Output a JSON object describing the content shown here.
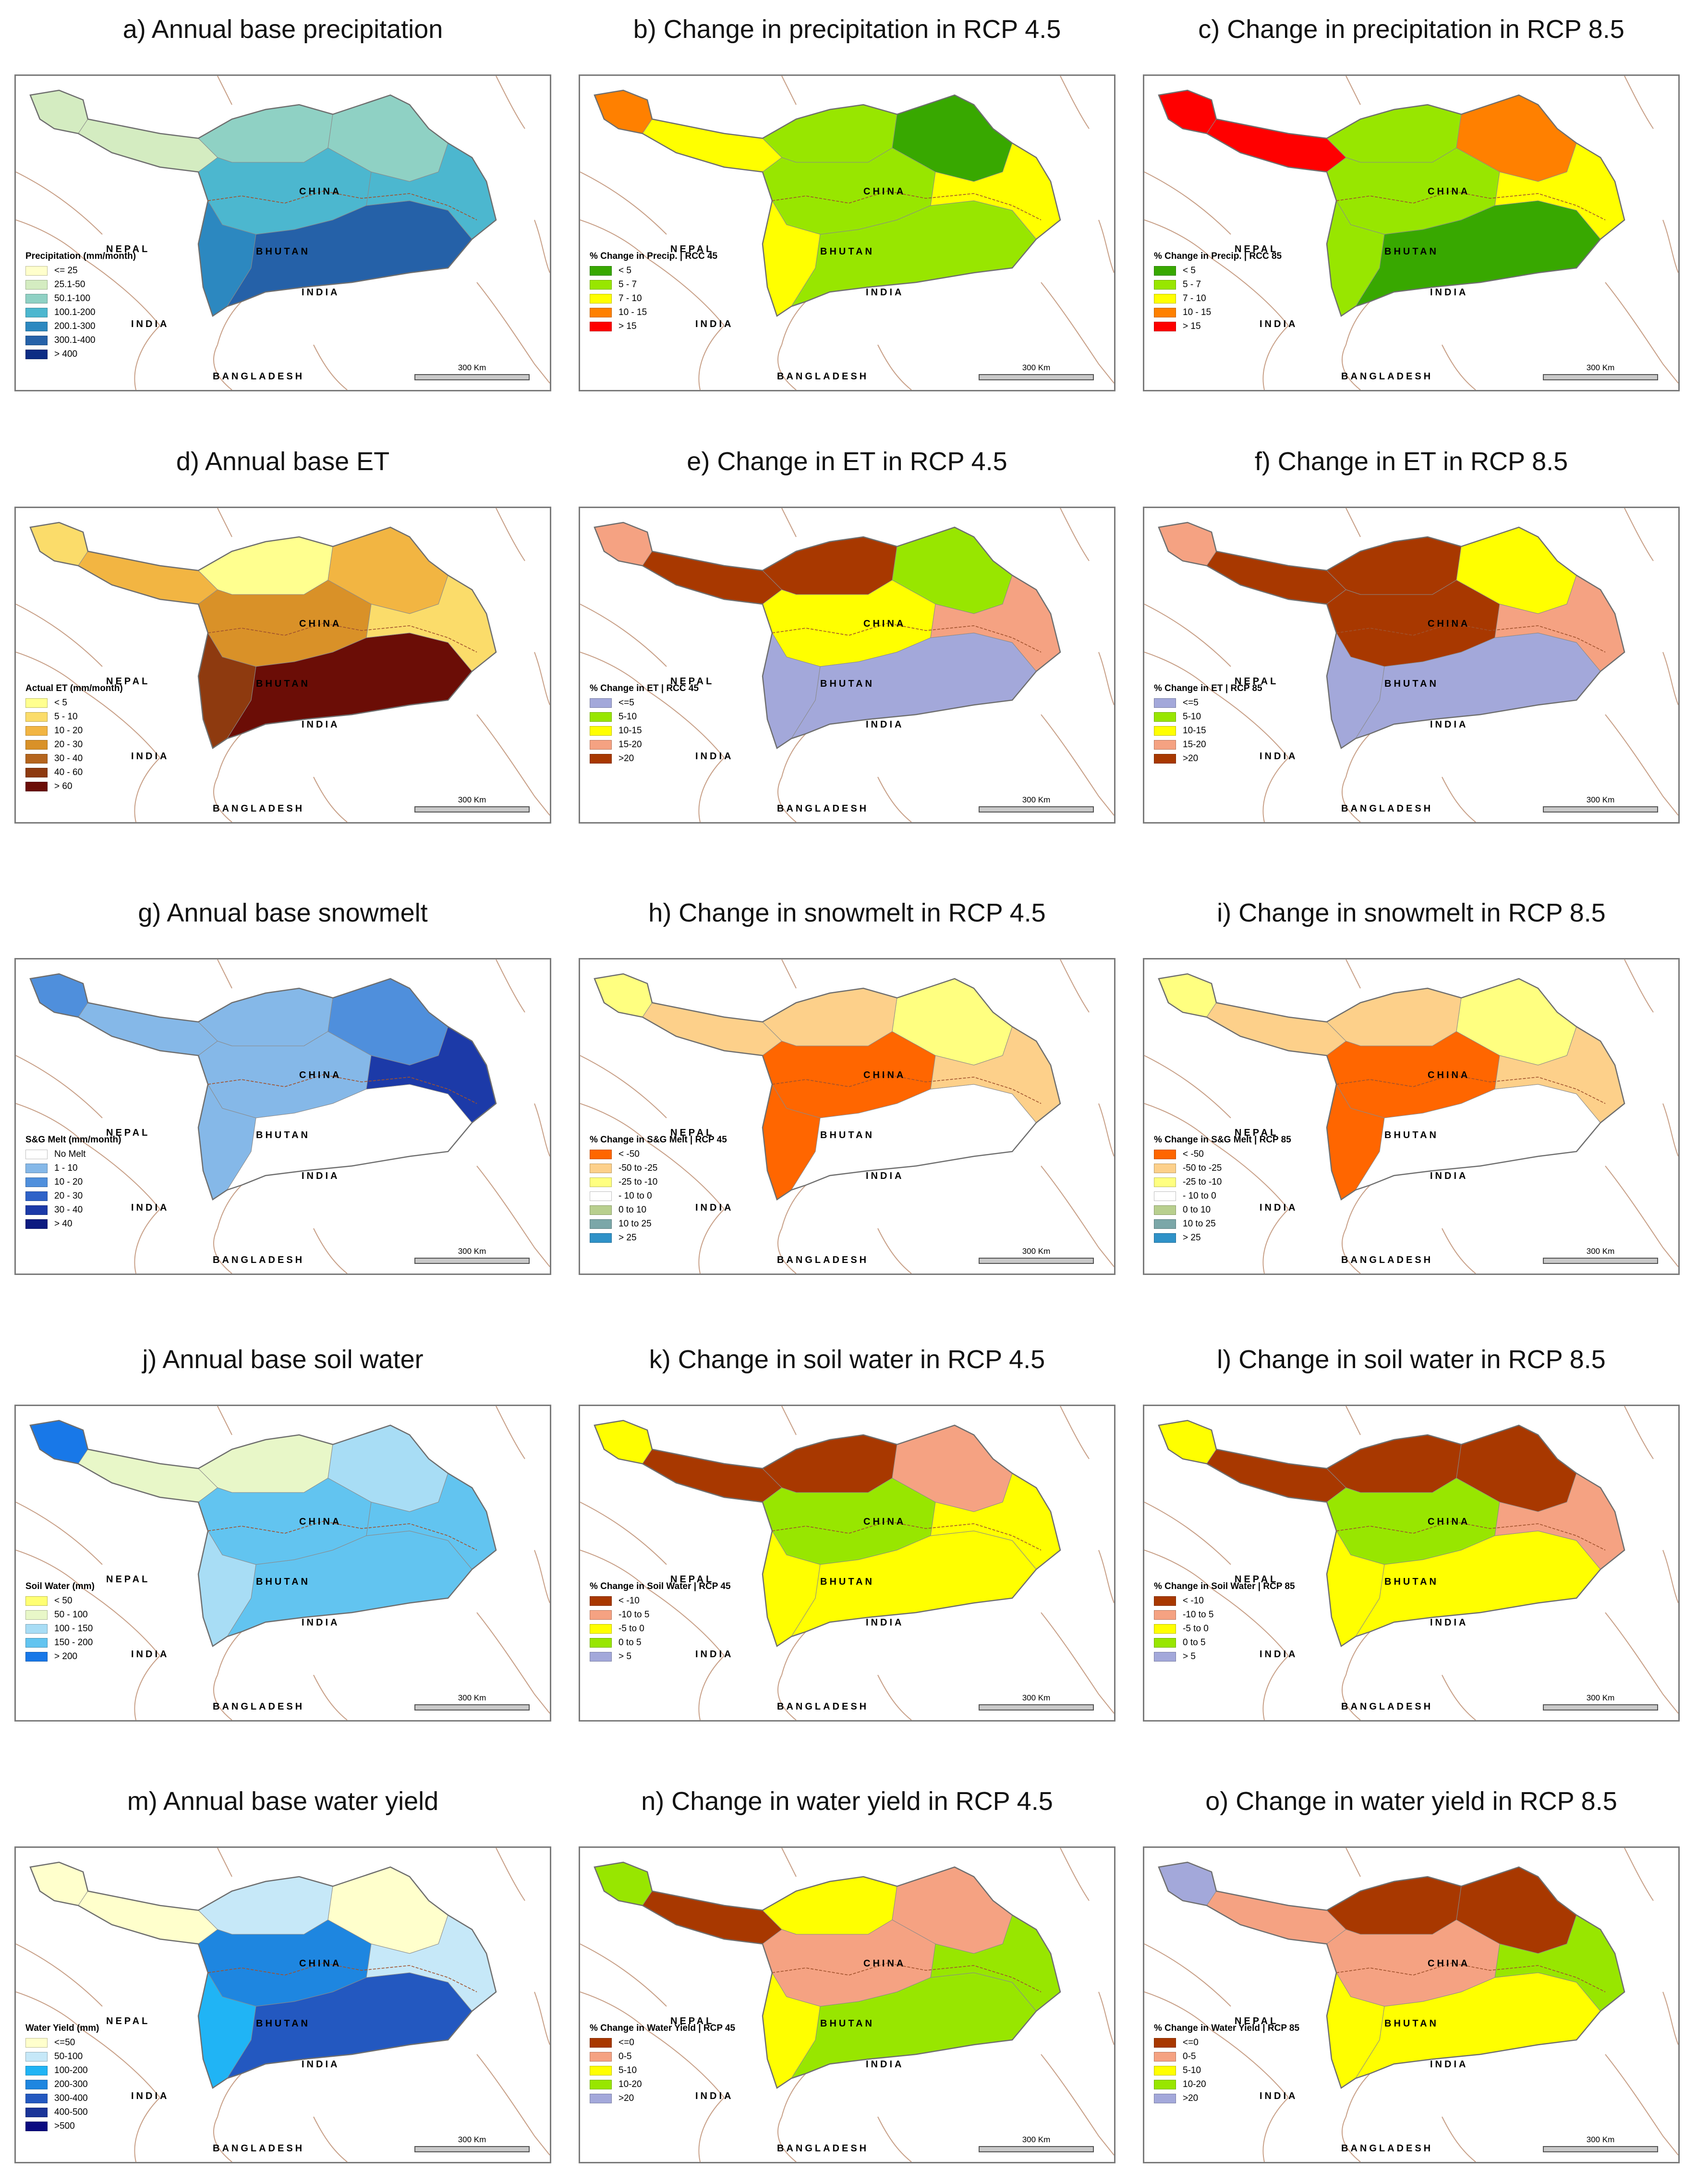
{
  "place_labels": {
    "china": "CHINA",
    "nepal": "NEPAL",
    "bhutan": "BHUTAN",
    "india_region": "INDIA",
    "india_south": "INDIA",
    "bangladesh": "BANGLADESH"
  },
  "scale_bar": "300 Km",
  "panels": [
    {
      "title": "a) Annual base precipitation",
      "legend_title": "Precipitation (mm/month)",
      "legend": [
        {
          "label": "<= 25",
          "color": "#ffffcc"
        },
        {
          "label": "25.1-50",
          "color": "#d4ecc1"
        },
        {
          "label": "50.1-100",
          "color": "#8fd1c4"
        },
        {
          "label": "100.1-200",
          "color": "#4cb7cf"
        },
        {
          "label": "200.1-300",
          "color": "#2c88c0"
        },
        {
          "label": "300.1-400",
          "color": "#2561a8"
        },
        {
          "label": "> 400",
          "color": "#0c2c84"
        }
      ],
      "zones": [
        "#d4ecc1",
        "#d4ecc1",
        "#8fd1c4",
        "#8fd1c4",
        "#4cb7cf",
        "#2c88c0",
        "#2561a8",
        "#4cb7cf"
      ]
    },
    {
      "title": "b) Change in precipitation in RCP 4.5",
      "legend_title": "% Change in Precip. | RCC 45",
      "legend": [
        {
          "label": "< 5",
          "color": "#38a800"
        },
        {
          "label": "5 - 7",
          "color": "#98e600"
        },
        {
          "label": "7 - 10",
          "color": "#ffff00"
        },
        {
          "label": "10 - 15",
          "color": "#ff8000"
        },
        {
          "label": "> 15",
          "color": "#ff0000"
        }
      ],
      "zones": [
        "#ff8000",
        "#ffff00",
        "#98e600",
        "#38a800",
        "#98e600",
        "#ffff00",
        "#98e600",
        "#ffff00"
      ]
    },
    {
      "title": "c) Change in precipitation in RCP 8.5",
      "legend_title": "% Change in Precip. | RCC 85",
      "legend": [
        {
          "label": "< 5",
          "color": "#38a800"
        },
        {
          "label": "5 - 7",
          "color": "#98e600"
        },
        {
          "label": "7 - 10",
          "color": "#ffff00"
        },
        {
          "label": "10 - 15",
          "color": "#ff8000"
        },
        {
          "label": "> 15",
          "color": "#ff0000"
        }
      ],
      "zones": [
        "#ff0000",
        "#ff0000",
        "#98e600",
        "#ff8000",
        "#98e600",
        "#98e600",
        "#38a800",
        "#ffff00"
      ]
    },
    {
      "title": "d) Annual base ET",
      "legend_title": "Actual ET (mm/month)",
      "legend": [
        {
          "label": "< 5",
          "color": "#ffff8f"
        },
        {
          "label": "5 - 10",
          "color": "#fbdc6a"
        },
        {
          "label": "10 - 20",
          "color": "#f2b542"
        },
        {
          "label": "20 - 30",
          "color": "#d99128"
        },
        {
          "label": "30 - 40",
          "color": "#b5651d"
        },
        {
          "label": "40 - 60",
          "color": "#8e3a0f"
        },
        {
          "label": "> 60",
          "color": "#6b0d06"
        }
      ],
      "zones": [
        "#fbdc6a",
        "#f2b542",
        "#ffff8f",
        "#f2b542",
        "#d99128",
        "#8e3a0f",
        "#6b0d06",
        "#fbdc6a"
      ]
    },
    {
      "title": "e) Change in ET in RCP 4.5",
      "legend_title": "% Change in ET | RCC 45",
      "legend": [
        {
          "label": "<=5",
          "color": "#a3a8da"
        },
        {
          "label": "5-10",
          "color": "#98e600"
        },
        {
          "label": "10-15",
          "color": "#ffff00"
        },
        {
          "label": "15-20",
          "color": "#f5a282"
        },
        {
          "label": ">20",
          "color": "#a83800"
        }
      ],
      "zones": [
        "#f5a282",
        "#a83800",
        "#a83800",
        "#98e600",
        "#ffff00",
        "#a3a8da",
        "#a3a8da",
        "#f5a282"
      ]
    },
    {
      "title": "f) Change in ET in RCP 8.5",
      "legend_title": "% Change in ET | RCP 85",
      "legend": [
        {
          "label": "<=5",
          "color": "#a3a8da"
        },
        {
          "label": "5-10",
          "color": "#98e600"
        },
        {
          "label": "10-15",
          "color": "#ffff00"
        },
        {
          "label": "15-20",
          "color": "#f5a282"
        },
        {
          "label": ">20",
          "color": "#a83800"
        }
      ],
      "zones": [
        "#f5a282",
        "#a83800",
        "#a83800",
        "#ffff00",
        "#a83800",
        "#a3a8da",
        "#a3a8da",
        "#f5a282"
      ]
    },
    {
      "title": "g) Annual base snowmelt",
      "legend_title": "S&G Melt (mm/month)",
      "legend": [
        {
          "label": "No Melt",
          "color": "#ffffff"
        },
        {
          "label": "1 - 10",
          "color": "#85b8e8"
        },
        {
          "label": "10 - 20",
          "color": "#4f8fdc"
        },
        {
          "label": "20 - 30",
          "color": "#2e62c8"
        },
        {
          "label": "30 - 40",
          "color": "#1c3aa8"
        },
        {
          "label": "> 40",
          "color": "#0c1a80"
        }
      ],
      "zones": [
        "#4f8fdc",
        "#85b8e8",
        "#85b8e8",
        "#4f8fdc",
        "#85b8e8",
        "#85b8e8",
        "#ffffff",
        "#1c3aa8"
      ]
    },
    {
      "title": "h) Change in snowmelt in RCP 4.5",
      "legend_title": "% Change in S&G Melt | RCP 45",
      "legend": [
        {
          "label": "< -50",
          "color": "#ff6600"
        },
        {
          "label": "-50 to -25",
          "color": "#fdd08a"
        },
        {
          "label": "-25 to -10",
          "color": "#ffff80"
        },
        {
          "label": "- 10 to 0",
          "color": "#ffffff"
        },
        {
          "label": "0 to 10",
          "color": "#b8cf8e"
        },
        {
          "label": "10 to 25",
          "color": "#7ba7a8"
        },
        {
          "label": "> 25",
          "color": "#2f92c8"
        }
      ],
      "zones": [
        "#ffff80",
        "#fdd08a",
        "#fdd08a",
        "#ffff80",
        "#ff6600",
        "#ff6600",
        "#ffffff",
        "#fdd08a"
      ]
    },
    {
      "title": "i) Change in snowmelt in RCP 8.5",
      "legend_title": "% Change in S&G Melt | RCP 85",
      "legend": [
        {
          "label": "< -50",
          "color": "#ff6600"
        },
        {
          "label": "-50 to -25",
          "color": "#fdd08a"
        },
        {
          "label": "-25 to -10",
          "color": "#ffff80"
        },
        {
          "label": "- 10 to 0",
          "color": "#ffffff"
        },
        {
          "label": "0 to 10",
          "color": "#b8cf8e"
        },
        {
          "label": "10 to 25",
          "color": "#7ba7a8"
        },
        {
          "label": "> 25",
          "color": "#2f92c8"
        }
      ],
      "zones": [
        "#ffff80",
        "#fdd08a",
        "#fdd08a",
        "#ffff80",
        "#ff6600",
        "#ff6600",
        "#ffffff",
        "#fdd08a"
      ]
    },
    {
      "title": "j) Annual base soil water",
      "legend_title": "Soil Water (mm)",
      "legend": [
        {
          "label": "< 50",
          "color": "#ffff73"
        },
        {
          "label": "50 - 100",
          "color": "#e8f7c8"
        },
        {
          "label": "100 - 150",
          "color": "#a8ddf5"
        },
        {
          "label": "150 - 200",
          "color": "#62c4f0"
        },
        {
          "label": "> 200",
          "color": "#1878e8"
        }
      ],
      "zones": [
        "#1878e8",
        "#e8f7c8",
        "#e8f7c8",
        "#a8ddf5",
        "#62c4f0",
        "#a8ddf5",
        "#62c4f0",
        "#62c4f0"
      ]
    },
    {
      "title": "k) Change in soil water in RCP 4.5",
      "legend_title": "% Change in Soil Water | RCP 45",
      "legend": [
        {
          "label": "< -10",
          "color": "#a83800"
        },
        {
          "label": "-10 to 5",
          "color": "#f5a282"
        },
        {
          "label": "-5 to 0",
          "color": "#ffff00"
        },
        {
          "label": "0 to 5",
          "color": "#98e600"
        },
        {
          "label": "> 5",
          "color": "#a3a8da"
        }
      ],
      "zones": [
        "#ffff00",
        "#a83800",
        "#a83800",
        "#f5a282",
        "#98e600",
        "#ffff00",
        "#ffff00",
        "#ffff00"
      ]
    },
    {
      "title": "l) Change in soil water in RCP 8.5",
      "legend_title": "% Change in Soil Water | RCP 85",
      "legend": [
        {
          "label": "< -10",
          "color": "#a83800"
        },
        {
          "label": "-10 to 5",
          "color": "#f5a282"
        },
        {
          "label": "-5 to 0",
          "color": "#ffff00"
        },
        {
          "label": "0 to 5",
          "color": "#98e600"
        },
        {
          "label": "> 5",
          "color": "#a3a8da"
        }
      ],
      "zones": [
        "#ffff00",
        "#a83800",
        "#a83800",
        "#a83800",
        "#98e600",
        "#ffff00",
        "#ffff00",
        "#f5a282"
      ]
    },
    {
      "title": "m) Annual base water yield",
      "legend_title": "Water Yield (mm)",
      "legend": [
        {
          "label": "<=50",
          "color": "#ffffcc"
        },
        {
          "label": "50-100",
          "color": "#c6e8f8"
        },
        {
          "label": "100-200",
          "color": "#20b4f5"
        },
        {
          "label": "200-300",
          "color": "#1e86e0"
        },
        {
          "label": "300-400",
          "color": "#2358c0"
        },
        {
          "label": "400-500",
          "color": "#1a3498"
        },
        {
          "label": ">500",
          "color": "#0a0a80"
        }
      ],
      "zones": [
        "#ffffcc",
        "#ffffcc",
        "#c6e8f8",
        "#ffffcc",
        "#1e86e0",
        "#20b4f5",
        "#2358c0",
        "#c6e8f8"
      ]
    },
    {
      "title": "n) Change in water yield in RCP 4.5",
      "legend_title": "% Change in Water Yield | RCP 45",
      "legend": [
        {
          "label": "<=0",
          "color": "#a83800"
        },
        {
          "label": "0-5",
          "color": "#f5a282"
        },
        {
          "label": "5-10",
          "color": "#ffff00"
        },
        {
          "label": "10-20",
          "color": "#98e600"
        },
        {
          "label": ">20",
          "color": "#a3a8da"
        }
      ],
      "zones": [
        "#98e600",
        "#a83800",
        "#ffff00",
        "#f5a282",
        "#f5a282",
        "#ffff00",
        "#98e600",
        "#98e600"
      ]
    },
    {
      "title": "o) Change in water yield in RCP 8.5",
      "legend_title": "% Change in Water Yield | RCP 85",
      "legend": [
        {
          "label": "<=0",
          "color": "#a83800"
        },
        {
          "label": "0-5",
          "color": "#f5a282"
        },
        {
          "label": "5-10",
          "color": "#ffff00"
        },
        {
          "label": "10-20",
          "color": "#98e600"
        },
        {
          "label": ">20",
          "color": "#a3a8da"
        }
      ],
      "zones": [
        "#a3a8da",
        "#f5a282",
        "#a83800",
        "#a83800",
        "#f5a282",
        "#ffff00",
        "#ffff00",
        "#98e600"
      ]
    }
  ]
}
